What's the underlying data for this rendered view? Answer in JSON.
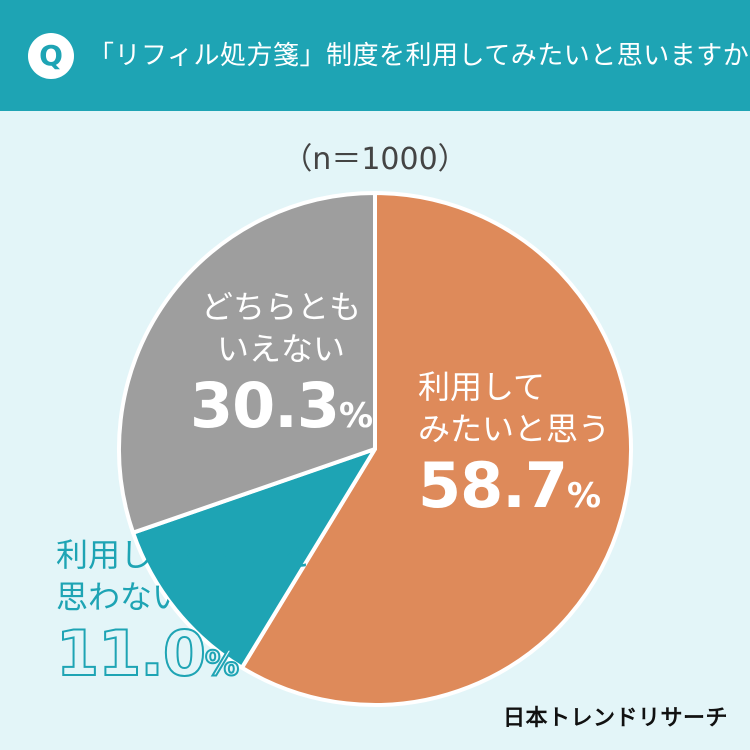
{
  "header": {
    "badge": "Q",
    "question": "「リフィル処方箋」制度を利用してみたいと思いますか？"
  },
  "sample_size": "（n＝1000）",
  "chart_data": {
    "type": "pie",
    "start_angle_deg": 0,
    "direction": "clockwise",
    "slices": [
      {
        "label_lines": [
          "利用して",
          "みたいと思う"
        ],
        "value": 58.7,
        "display": "58.7",
        "color": "#de8a5a"
      },
      {
        "label_lines": [
          "利用してみたいと",
          "思わない"
        ],
        "value": 11.0,
        "display": "11.0",
        "color": "#1ea4b4"
      },
      {
        "label_lines": [
          "どちらとも",
          "いえない"
        ],
        "value": 30.3,
        "display": "30.3",
        "color": "#9e9e9e"
      }
    ],
    "unit": "%",
    "legend": "none"
  },
  "footer": {
    "logo": "日本トレンドリサーチ"
  }
}
